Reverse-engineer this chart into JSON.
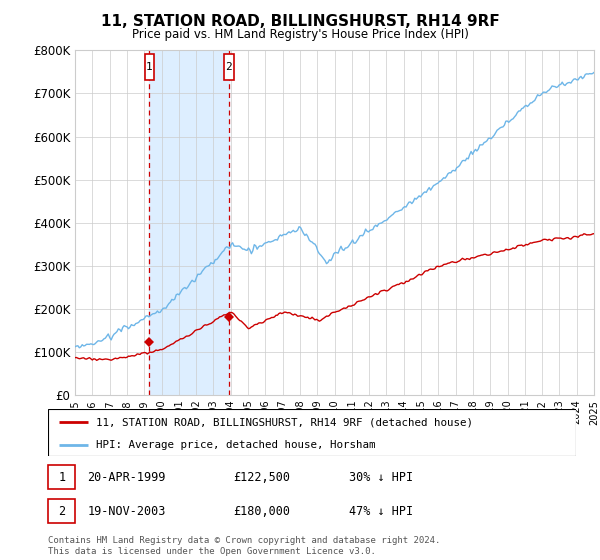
{
  "title": "11, STATION ROAD, BILLINGSHURST, RH14 9RF",
  "subtitle": "Price paid vs. HM Land Registry's House Price Index (HPI)",
  "xlim": [
    1995,
    2025
  ],
  "ylim": [
    0,
    800000
  ],
  "yticks": [
    0,
    100000,
    200000,
    300000,
    400000,
    500000,
    600000,
    700000,
    800000
  ],
  "ytick_labels": [
    "£0",
    "£100K",
    "£200K",
    "£300K",
    "£400K",
    "£500K",
    "£600K",
    "£700K",
    "£800K"
  ],
  "hpi_color": "#6eb6e8",
  "price_color": "#cc0000",
  "vline_color": "#cc0000",
  "shade_color": "#ddeeff",
  "t1_year": 1999.3,
  "t2_year": 2003.9,
  "t1_price": 122500,
  "t2_price": 180000,
  "legend_price_label": "11, STATION ROAD, BILLINGSHURST, RH14 9RF (detached house)",
  "legend_hpi_label": "HPI: Average price, detached house, Horsham",
  "table_date1": "20-APR-1999",
  "table_price1": "£122,500",
  "table_pct1": "30% ↓ HPI",
  "table_date2": "19-NOV-2003",
  "table_price2": "£180,000",
  "table_pct2": "47% ↓ HPI",
  "footnote": "Contains HM Land Registry data © Crown copyright and database right 2024.\nThis data is licensed under the Open Government Licence v3.0.",
  "bg": "#ffffff",
  "grid_color": "#cccccc"
}
